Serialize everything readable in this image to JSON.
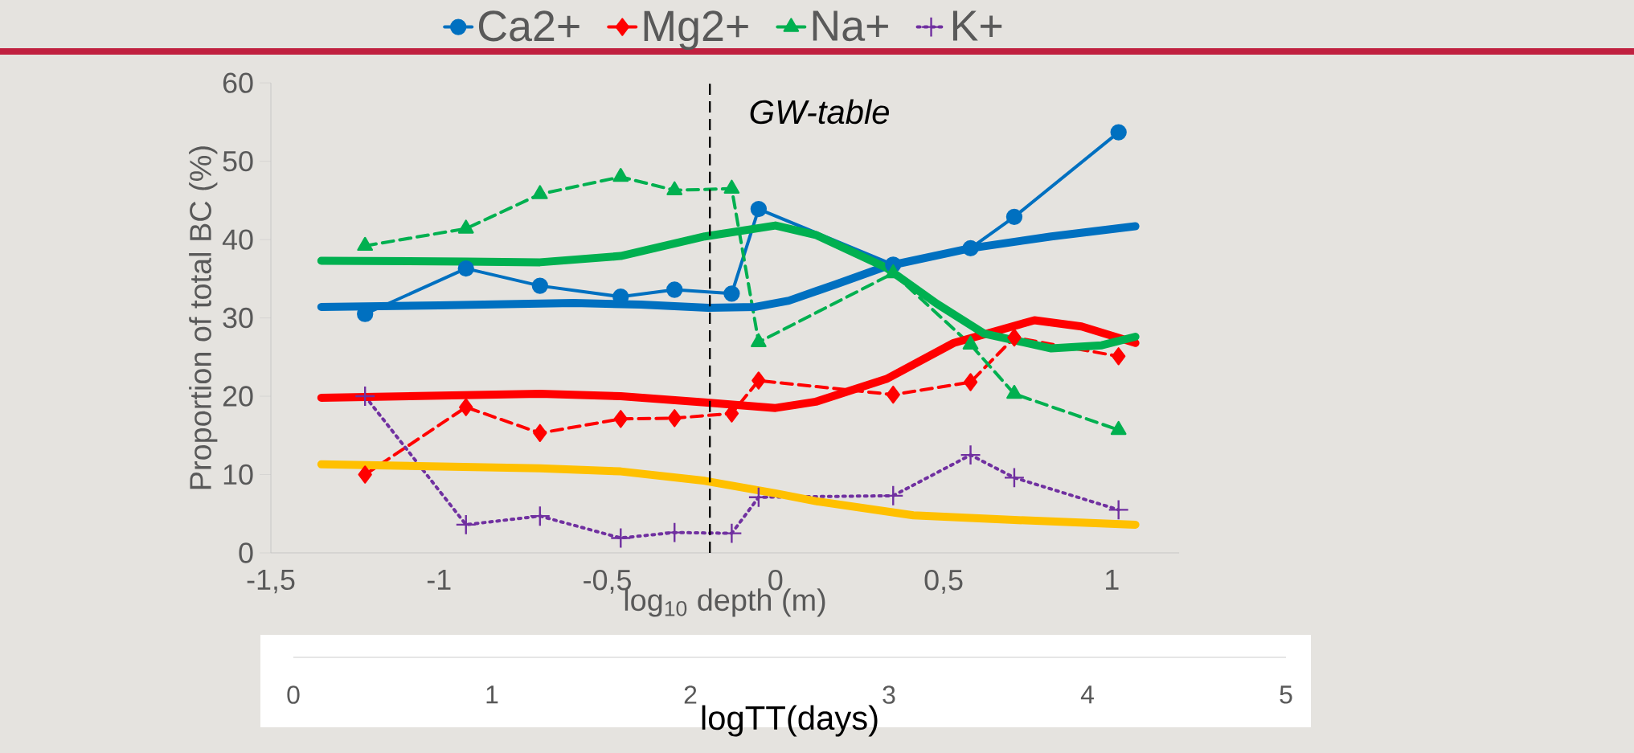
{
  "chart_data": {
    "type": "line",
    "xlabel": "log$_{10}$ depth (m)",
    "ylabel": "Proportion of total BC (%)",
    "x2label": "logTT(days)",
    "x": [
      -1.22,
      -0.92,
      -0.7,
      -0.46,
      -0.3,
      -0.13,
      -0.05,
      0.35,
      0.58,
      0.71,
      1.02
    ],
    "series": [
      {
        "name": "Ca2+",
        "color": "#0070c0",
        "marker": "circle",
        "line_style": "solid",
        "values": [
          30.5,
          36.3,
          34.1,
          32.7,
          33.6,
          33.1,
          43.9,
          36.8,
          38.9,
          42.9,
          53.7
        ]
      },
      {
        "name": "Mg2+",
        "color": "#ff0000",
        "marker": "diamond",
        "line_style": "dashed",
        "values": [
          10.0,
          18.6,
          15.3,
          17.1,
          17.2,
          17.8,
          22.0,
          20.2,
          21.8,
          27.5,
          25.1
        ]
      },
      {
        "name": "Na+",
        "color": "#00b050",
        "marker": "triangle",
        "line_style": "dashed",
        "values": [
          39.2,
          41.4,
          45.8,
          48.0,
          46.3,
          46.5,
          26.9,
          35.7,
          26.6,
          20.3,
          15.7
        ]
      },
      {
        "name": "K+",
        "color": "#7030a0",
        "marker": "cross",
        "line_style": "dotted",
        "values": [
          20.0,
          3.6,
          4.7,
          1.9,
          2.6,
          2.5,
          7.1,
          7.3,
          12.5,
          9.6,
          5.5
        ]
      },
      {
        "color": "#0070c0",
        "marker": "none",
        "line_style": "solid",
        "x": [
          -1.35,
          -1.0,
          -0.6,
          -0.4,
          -0.2,
          -0.06,
          0.04,
          0.18,
          0.33,
          0.58,
          0.82,
          1.07
        ],
        "values": [
          31.4,
          31.6,
          31.9,
          31.7,
          31.3,
          31.4,
          32.2,
          34.3,
          36.6,
          38.9,
          40.4,
          41.7
        ]
      },
      {
        "color": "#ff0000",
        "marker": "none",
        "line_style": "solid",
        "x": [
          -1.35,
          -0.7,
          -0.46,
          -0.21,
          0.0,
          0.12,
          0.33,
          0.53,
          0.77,
          0.91,
          1.07
        ],
        "values": [
          19.8,
          20.3,
          20.0,
          19.2,
          18.5,
          19.3,
          22.2,
          26.8,
          29.7,
          28.9,
          26.8
        ]
      },
      {
        "color": "#00b050",
        "marker": "none",
        "line_style": "solid",
        "x": [
          -1.35,
          -0.92,
          -0.7,
          -0.46,
          -0.21,
          0.0,
          0.12,
          0.33,
          0.48,
          0.62,
          0.82,
          0.97,
          1.07
        ],
        "values": [
          37.3,
          37.2,
          37.1,
          37.9,
          40.4,
          41.8,
          40.6,
          36.4,
          31.8,
          28.0,
          26.1,
          26.5,
          27.6
        ]
      },
      {
        "color": "#ffc000",
        "marker": "none",
        "line_style": "solid",
        "x": [
          -1.35,
          -0.7,
          -0.46,
          -0.21,
          0.0,
          0.12,
          0.41,
          0.71,
          1.07
        ],
        "values": [
          11.3,
          10.8,
          10.4,
          9.2,
          7.6,
          6.6,
          4.8,
          4.2,
          3.6
        ]
      }
    ],
    "xlim": [
      -1.5,
      1.2
    ],
    "xticks": [
      {
        "value": -1.5,
        "label": "-1,5"
      },
      {
        "value": -1,
        "label": "-1"
      },
      {
        "value": -0.5,
        "label": "-0,5"
      },
      0,
      {
        "value": 0.5,
        "label": "0,5"
      },
      1
    ],
    "ylim": [
      0,
      60
    ],
    "yticks": [
      0,
      10,
      20,
      30,
      40,
      50,
      60
    ],
    "x2lim": [
      0,
      5
    ],
    "x2ticks": [
      0,
      1,
      2,
      3,
      4,
      5
    ],
    "ref_lines": [
      {
        "axis": "x",
        "value": -0.195,
        "label": "GW-table",
        "color": "#000000",
        "line_style": "dashed"
      }
    ],
    "legend": "top",
    "grid": false
  }
}
